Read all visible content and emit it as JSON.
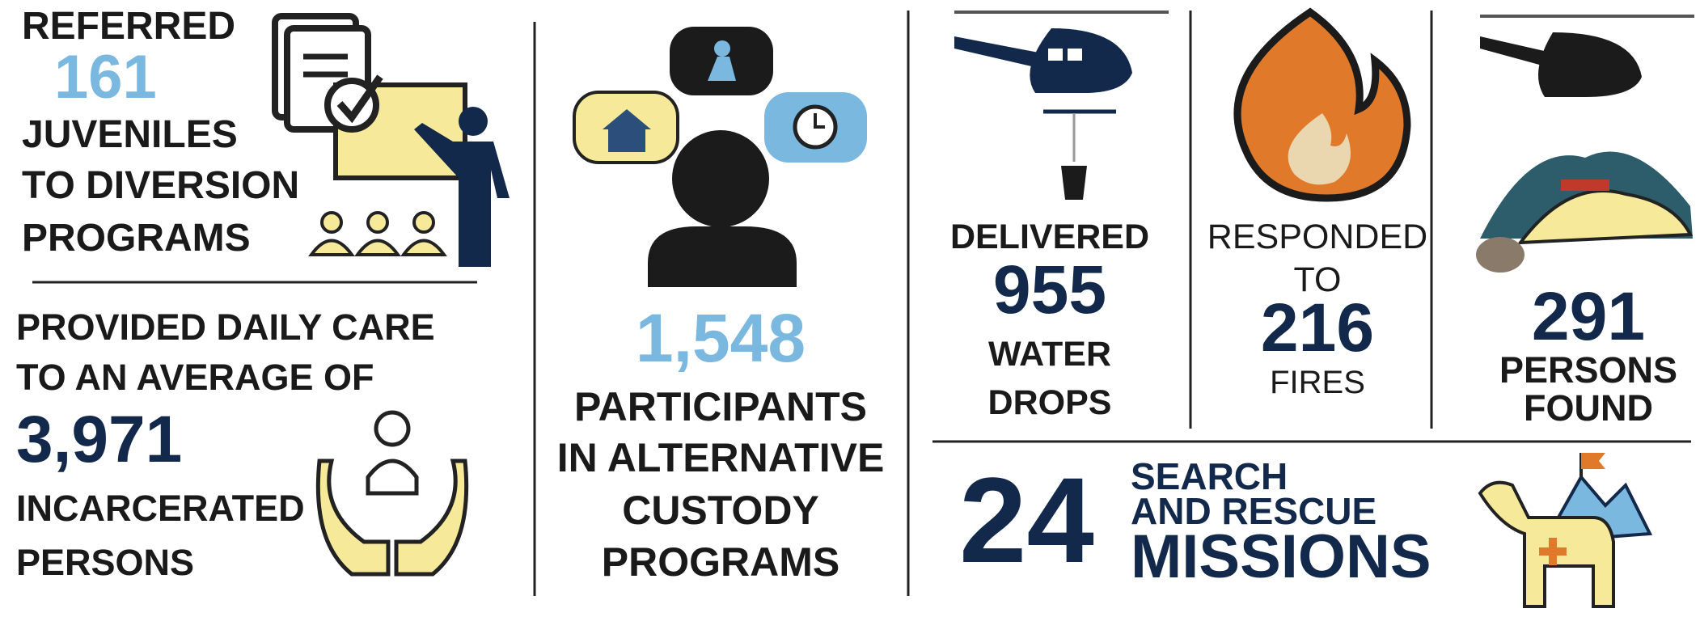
{
  "juveniles": {
    "verb": "REFERRED",
    "number": "161",
    "lines": [
      "JUVENILES",
      "TO DIVERSION",
      "PROGRAMS"
    ]
  },
  "daily_care": {
    "lines": [
      "PROVIDED DAILY CARE",
      "TO AN AVERAGE OF"
    ],
    "number": "3,971",
    "tail": [
      "INCARCERATED",
      "PERSONS"
    ]
  },
  "alternative_custody": {
    "number": "1,548",
    "lines": [
      "PARTICIPANTS",
      "IN ALTERNATIVE",
      "CUSTODY",
      "PROGRAMS"
    ]
  },
  "water_drops": {
    "verb": "DELIVERED",
    "number": "955",
    "lines": [
      "WATER",
      "DROPS"
    ]
  },
  "fires": {
    "lines": [
      "RESPONDED",
      "TO"
    ],
    "number": "216",
    "tail": "FIRES"
  },
  "persons_found": {
    "number": "291",
    "lines": [
      "PERSONS",
      "FOUND"
    ]
  },
  "search_rescue": {
    "number": "24",
    "lines": [
      "SEARCH",
      "AND RESCUE"
    ],
    "emphasis": "MISSIONS"
  }
}
